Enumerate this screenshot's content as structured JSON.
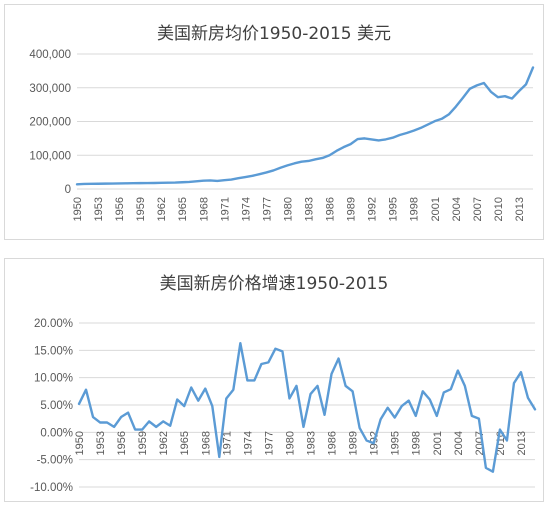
{
  "chart_data": [
    {
      "type": "line",
      "title": "美国新房均价1950-2015 美元",
      "xlabel": "",
      "ylabel": "",
      "ylim": [
        0,
        400000
      ],
      "yticks": [
        "0",
        "100,000",
        "200,000",
        "300,000",
        "400,000"
      ],
      "yticks_values": [
        0,
        100000,
        200000,
        300000,
        400000
      ],
      "xtick_labels": [
        "1950",
        "1953",
        "1956",
        "1959",
        "1962",
        "1965",
        "1968",
        "1971",
        "1974",
        "1977",
        "1980",
        "1983",
        "1986",
        "1989",
        "1992",
        "1995",
        "1998",
        "2001",
        "2004",
        "2007",
        "2010",
        "2013"
      ],
      "grid": true,
      "legend": "none",
      "color": "#5b9bd5",
      "x": [
        1950,
        1951,
        1952,
        1953,
        1954,
        1955,
        1956,
        1957,
        1958,
        1959,
        1960,
        1961,
        1962,
        1963,
        1964,
        1965,
        1966,
        1967,
        1968,
        1969,
        1970,
        1971,
        1972,
        1973,
        1974,
        1975,
        1976,
        1977,
        1978,
        1979,
        1980,
        1981,
        1982,
        1983,
        1984,
        1985,
        1986,
        1987,
        1988,
        1989,
        1990,
        1991,
        1992,
        1993,
        1994,
        1995,
        1996,
        1997,
        1998,
        1999,
        2000,
        2001,
        2002,
        2003,
        2004,
        2005,
        2006,
        2007,
        2008,
        2009,
        2010,
        2011,
        2012,
        2013,
        2014,
        2015
      ],
      "values": [
        14000,
        15000,
        15400,
        15600,
        15900,
        16000,
        16500,
        16900,
        17100,
        17400,
        17500,
        17800,
        18200,
        18600,
        19000,
        20000,
        21000,
        22700,
        24500,
        25500,
        24000,
        26000,
        28000,
        32000,
        35500,
        39000,
        44000,
        49000,
        55000,
        63000,
        70000,
        76000,
        81000,
        83000,
        88000,
        92000,
        100000,
        113000,
        124000,
        133000,
        148000,
        150000,
        147000,
        144000,
        147000,
        152000,
        160000,
        166000,
        173000,
        181000,
        191000,
        201000,
        208000,
        221000,
        244000,
        270000,
        297000,
        307000,
        314000,
        288000,
        272000,
        275000,
        268000,
        290000,
        310000,
        360000
      ]
    },
    {
      "type": "line",
      "title": "美国新房价格增速1950-2015",
      "xlabel": "",
      "ylabel": "",
      "ylim": [
        -0.1,
        0.2
      ],
      "yticks": [
        "-10.00%",
        "-5.00%",
        "0.00%",
        "5.00%",
        "10.00%",
        "15.00%",
        "20.00%"
      ],
      "yticks_values": [
        -0.1,
        -0.05,
        0,
        0.05,
        0.1,
        0.15,
        0.2
      ],
      "xtick_labels": [
        "1950",
        "1953",
        "1956",
        "1959",
        "1962",
        "1965",
        "1968",
        "1971",
        "1974",
        "1977",
        "1980",
        "1983",
        "1986",
        "1989",
        "1992",
        "1995",
        "1998",
        "2001",
        "2004",
        "2007",
        "2010",
        "2013"
      ],
      "grid": true,
      "legend": "none",
      "color": "#5b9bd5",
      "x": [
        1950,
        1951,
        1952,
        1953,
        1954,
        1955,
        1956,
        1957,
        1958,
        1959,
        1960,
        1961,
        1962,
        1963,
        1964,
        1965,
        1966,
        1967,
        1968,
        1969,
        1970,
        1971,
        1972,
        1973,
        1974,
        1975,
        1976,
        1977,
        1978,
        1979,
        1980,
        1981,
        1982,
        1983,
        1984,
        1985,
        1986,
        1987,
        1988,
        1989,
        1990,
        1991,
        1992,
        1993,
        1994,
        1995,
        1996,
        1997,
        1998,
        1999,
        2000,
        2001,
        2002,
        2003,
        2004,
        2005,
        2006,
        2007,
        2008,
        2009,
        2010,
        2011,
        2012,
        2013,
        2014,
        2015
      ],
      "values": [
        0.052,
        0.078,
        0.028,
        0.018,
        0.018,
        0.01,
        0.028,
        0.036,
        0.005,
        0.005,
        0.02,
        0.01,
        0.02,
        0.012,
        0.06,
        0.048,
        0.082,
        0.058,
        0.08,
        0.048,
        -0.045,
        0.062,
        0.078,
        0.163,
        0.095,
        0.095,
        0.125,
        0.128,
        0.153,
        0.148,
        0.062,
        0.085,
        0.01,
        0.07,
        0.085,
        0.032,
        0.107,
        0.135,
        0.085,
        0.075,
        0.008,
        -0.015,
        -0.02,
        0.024,
        0.045,
        0.027,
        0.048,
        0.058,
        0.03,
        0.075,
        0.06,
        0.03,
        0.073,
        0.079,
        0.113,
        0.085,
        0.03,
        0.025,
        -0.065,
        -0.072,
        0.005,
        -0.015,
        0.09,
        0.11,
        0.063,
        0.042
      ]
    }
  ]
}
